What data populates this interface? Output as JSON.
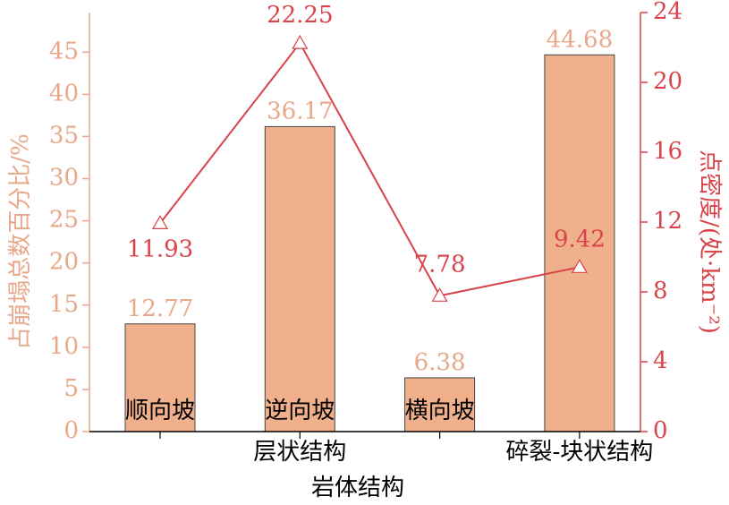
{
  "chart_data": {
    "type": "bar-line",
    "x_label": "岩体结构",
    "y_label": "占崩塌总数百分比/%",
    "y2_label": "点密度/(处·km⁻²)",
    "categories": [
      "顺向坡",
      "逆向坡",
      "横向坡",
      null
    ],
    "groups": [
      "层状结构",
      "碎裂-块状结构"
    ],
    "series": [
      {
        "type": "bar",
        "color": "#f0b08c",
        "values": [
          12.77,
          36.17,
          6.38,
          44.68
        ]
      },
      {
        "type": "line",
        "axis": "y2",
        "color": "#d9434a",
        "values": [
          11.93,
          22.25,
          7.78,
          9.42
        ]
      }
    ],
    "ylim": [
      0,
      49.7
    ],
    "yticks": [
      0,
      5,
      10,
      15,
      20,
      25,
      30,
      35,
      40,
      45
    ],
    "y2lim": [
      0,
      24
    ],
    "y2ticks": [
      0,
      4,
      8,
      12,
      16,
      20,
      24
    ]
  }
}
